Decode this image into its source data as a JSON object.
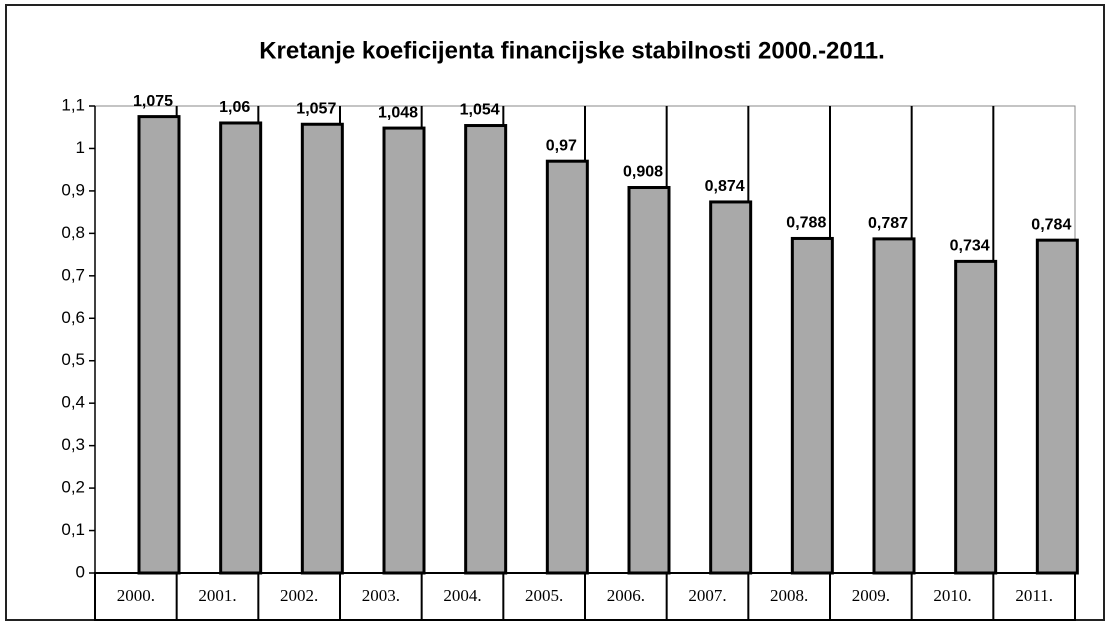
{
  "chart_data": {
    "type": "bar",
    "title": "Kretanje koeficijenta financijske stabilnosti 2000.-2011.",
    "categories": [
      "2000.",
      "2001.",
      "2002.",
      "2003.",
      "2004.",
      "2005.",
      "2006.",
      "2007.",
      "2008.",
      "2009.",
      "2010.",
      "2011."
    ],
    "values": [
      1.075,
      1.06,
      1.057,
      1.048,
      1.054,
      0.97,
      0.908,
      0.874,
      0.788,
      0.787,
      0.734,
      0.784
    ],
    "value_labels": [
      "1,075",
      "1,06",
      "1,057",
      "1,048",
      "1,054",
      "0,97",
      "0,908",
      "0,874",
      "0,788",
      "0,787",
      "0,734",
      "0,784"
    ],
    "color": "#a9a9a9",
    "ylim": [
      0,
      1.1
    ],
    "yticks": [
      0,
      {
        "value": 0.1,
        "label": "0,1"
      },
      {
        "value": 0.2,
        "label": "0,2"
      },
      {
        "value": 0.3,
        "label": "0,3"
      },
      {
        "value": 0.4,
        "label": "0,4"
      },
      {
        "value": 0.5,
        "label": "0,5"
      },
      {
        "value": 0.6,
        "label": "0,6"
      },
      {
        "value": 0.7,
        "label": "0,7"
      },
      {
        "value": 0.8,
        "label": "0,8"
      },
      {
        "value": 0.9,
        "label": "0,9"
      },
      1,
      {
        "value": 1.1,
        "label": "1,1"
      }
    ],
    "grid": false
  }
}
